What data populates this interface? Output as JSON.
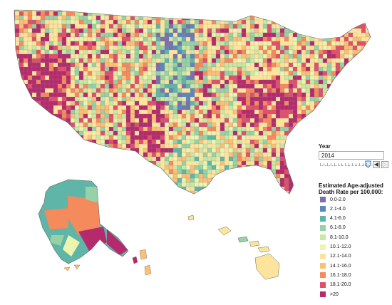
{
  "control": {
    "year_label": "Year",
    "year_value": "2014",
    "prev_symbol": "◀",
    "next_symbol": "▷"
  },
  "legend": {
    "title_line1": "Estimated Age-adjusted",
    "title_line2": "Death Rate per 100,000:",
    "items": [
      {
        "label": "0.0-2.0",
        "color": "#7b6fae"
      },
      {
        "label": "2.1-4.0",
        "color": "#5a87c1"
      },
      {
        "label": "4.1-6.0",
        "color": "#5fb5a7"
      },
      {
        "label": "6.1-8.0",
        "color": "#96d2a5"
      },
      {
        "label": "8.1-10.0",
        "color": "#c8e8a4"
      },
      {
        "label": "10.1-12.0",
        "color": "#ecf5b0"
      },
      {
        "label": "12.1-14.0",
        "color": "#fde49c"
      },
      {
        "label": "14.1-16.0",
        "color": "#fdbf76"
      },
      {
        "label": "16.1-18.0",
        "color": "#f58a5c"
      },
      {
        "label": "18.1-20.0",
        "color": "#e0506a"
      },
      {
        "label": ">20",
        "color": "#b52a6d"
      }
    ]
  }
}
